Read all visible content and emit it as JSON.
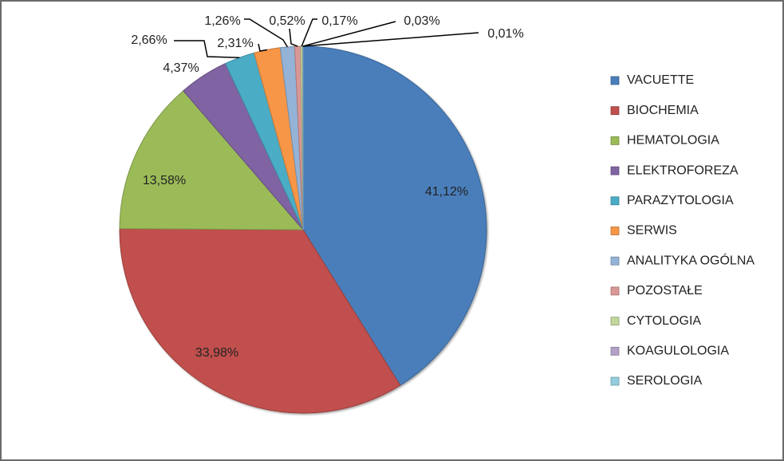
{
  "chart_data": {
    "type": "pie",
    "categories": [
      "VACUETTE",
      "BIOCHEMIA",
      "HEMATOLOGIA",
      "ELEKTROFOREZA",
      "PARAZYTOLOGIA",
      "SERWIS",
      "ANALITYKA OGÓLNA",
      "POZOSTAŁE",
      "CYTOLOGIA",
      "KOAGULOLOGIA",
      "SEROLOGIA"
    ],
    "values": [
      41.12,
      33.98,
      13.58,
      4.37,
      2.66,
      2.31,
      1.26,
      0.52,
      0.17,
      0.03,
      0.01
    ],
    "data_labels": [
      "41,12%",
      "33,98%",
      "13,58%",
      "4,37%",
      "2,66%",
      "2,31%",
      "1,26%",
      "0,52%",
      "0,17%",
      "0,03%",
      "0,01%"
    ],
    "colors": [
      "#4a7ebb",
      "#c0504d",
      "#9bbb59",
      "#8064a2",
      "#4bacc6",
      "#f79646",
      "#94b3d6",
      "#d99795",
      "#c3d69b",
      "#b3a2c7",
      "#93cddd"
    ],
    "legend_position": "right"
  }
}
